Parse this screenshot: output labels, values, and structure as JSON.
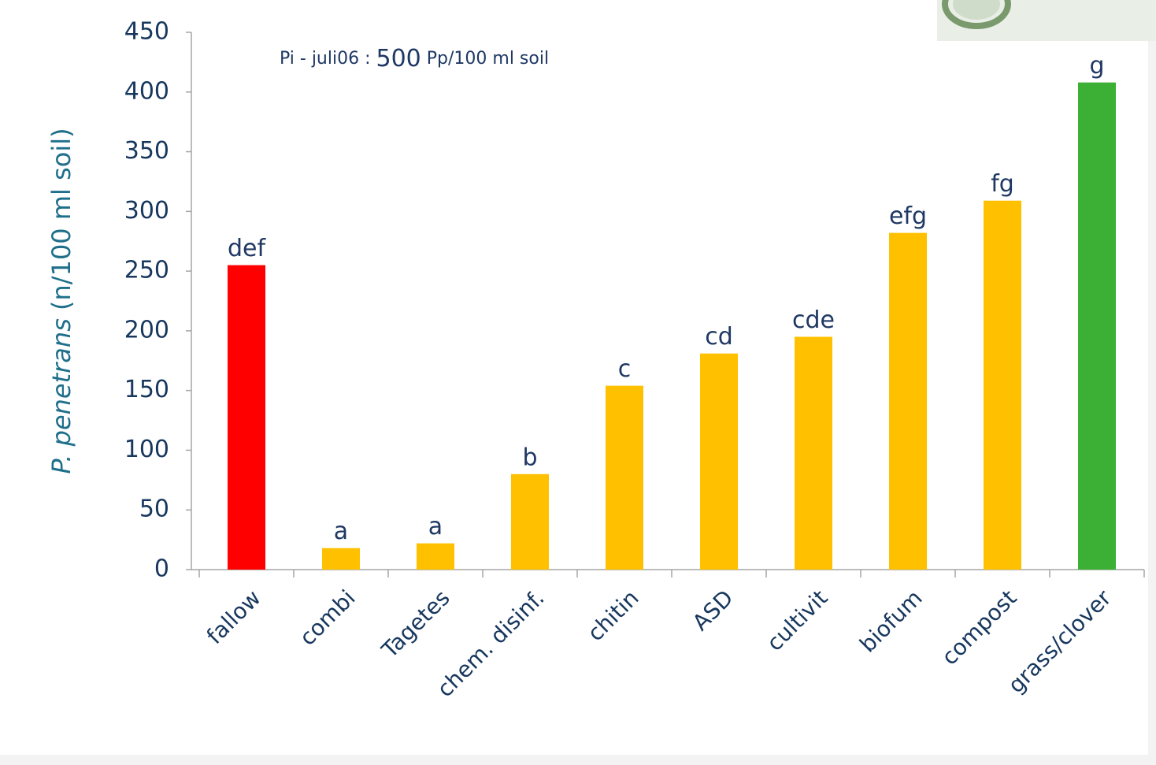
{
  "chart_data": {
    "type": "bar",
    "y_label": {
      "italic": "P. penetrans",
      "rest": "(n/100 ml soil)"
    },
    "annotation": {
      "prefix": "Pi - juli06 :",
      "value": 500,
      "suffix": "Pp/100  ml soil"
    },
    "categories": [
      "fallow",
      "combi",
      "Tagetes",
      "chem. disinf.",
      "chitin",
      "ASD",
      "cultivit",
      "biofum",
      "compost",
      "grass/clover"
    ],
    "values": [
      255,
      18,
      22,
      80,
      154,
      181,
      195,
      282,
      309,
      408
    ],
    "letters": [
      "def",
      "a",
      "a",
      "b",
      "c",
      "cd",
      "cde",
      "efg",
      "fg",
      "g"
    ],
    "colors": [
      "#ff0000",
      "#ffc000",
      "#ffc000",
      "#ffc000",
      "#ffc000",
      "#ffc000",
      "#ffc000",
      "#ffc000",
      "#ffc000",
      "#3cb034"
    ],
    "ylim": [
      0,
      450
    ],
    "yticks": [
      0,
      50,
      100,
      150,
      200,
      250,
      300,
      350,
      400,
      450
    ],
    "grid": false
  }
}
